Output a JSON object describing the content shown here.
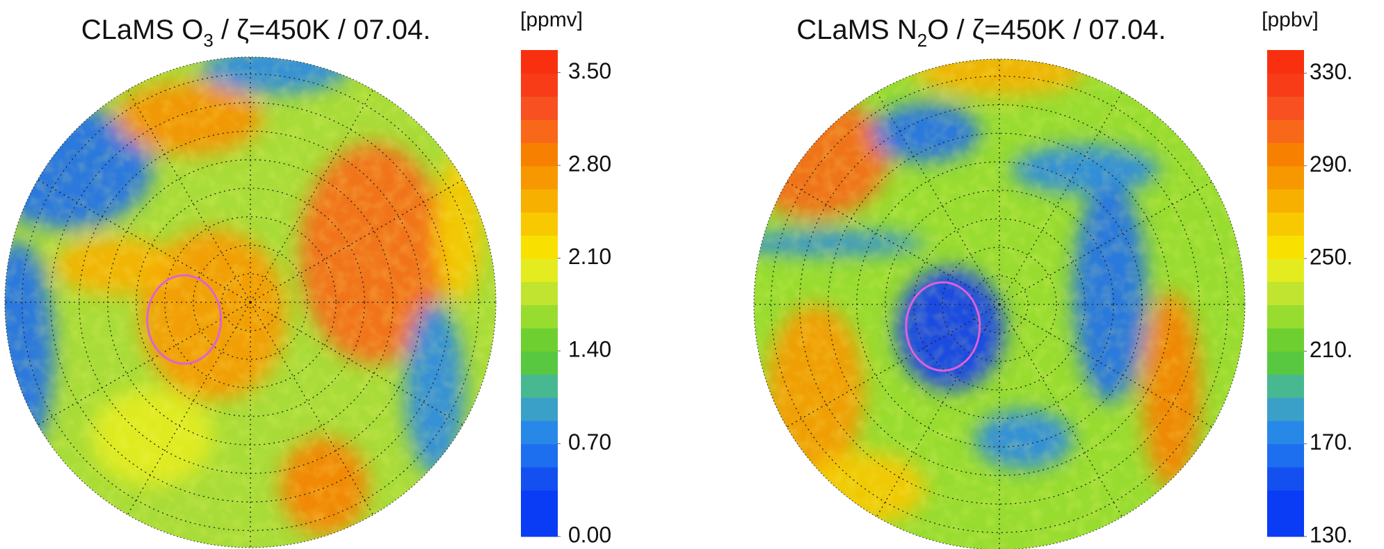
{
  "panels": [
    {
      "title_parts": [
        "CLaMS O",
        "3",
        " / ζ=450K / 07.04."
      ],
      "unit": "[ppmv]",
      "colorbar": {
        "ylim": [
          0,
          3.67
        ],
        "ticks": [
          {
            "value": 0,
            "label": "0.00"
          },
          {
            "value": 0.7,
            "label": "0.70"
          },
          {
            "value": 1.4,
            "label": "1.40"
          },
          {
            "value": 2.1,
            "label": "2.10"
          },
          {
            "value": 2.8,
            "label": "2.80"
          },
          {
            "value": 3.5,
            "label": "3.50"
          }
        ],
        "colors": [
          "#0a3cf5",
          "#0a3cf5",
          "#1450f0",
          "#1e6ef0",
          "#2888e8",
          "#3aa0c8",
          "#48b890",
          "#58c840",
          "#6ed030",
          "#98dc30",
          "#c0e430",
          "#e4ec20",
          "#f8e000",
          "#f8c800",
          "#f8b000",
          "#f89800",
          "#f88000",
          "#f86818",
          "#f85020",
          "#f83c18",
          "#f83010"
        ]
      }
    },
    {
      "title_parts": [
        "CLaMS N",
        "2",
        "O / ζ=450K / 07.04."
      ],
      "unit": "[ppbv]",
      "colorbar": {
        "ylim": [
          130,
          340
        ],
        "ticks": [
          {
            "value": 130,
            "label": "130."
          },
          {
            "value": 170,
            "label": "170."
          },
          {
            "value": 210,
            "label": "210."
          },
          {
            "value": 250,
            "label": "250."
          },
          {
            "value": 290,
            "label": "290."
          },
          {
            "value": 330,
            "label": "330."
          }
        ],
        "colors": [
          "#0a3cf5",
          "#0a3cf5",
          "#1450f0",
          "#1e6ef0",
          "#2888e8",
          "#3aa0c8",
          "#48b890",
          "#58c840",
          "#6ed030",
          "#98dc30",
          "#c0e430",
          "#e4ec20",
          "#f8e000",
          "#f8c800",
          "#f8b000",
          "#f89800",
          "#f88000",
          "#f86818",
          "#f85020",
          "#f83c18",
          "#f83010"
        ]
      }
    }
  ]
}
